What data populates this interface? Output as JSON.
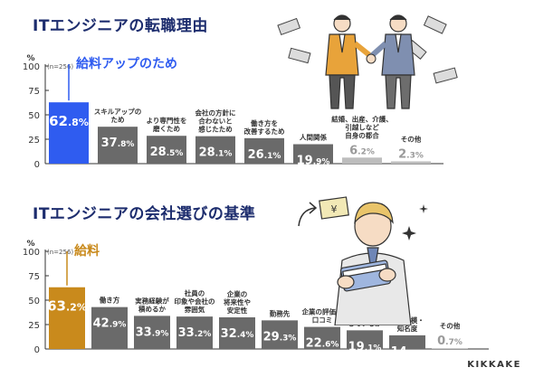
{
  "brand": "KIKKAKE",
  "colors": {
    "highlight1": "#2f5cf0",
    "highlight2": "#c98a1c",
    "bar": "#6a6a6a",
    "bar_light": "#bdbdbd",
    "title": "#1d2d6e"
  },
  "icons": [
    "handshake-illustration",
    "money-illustration",
    "yen-card-illustration",
    "sparkle-icon",
    "arrow-up-icon"
  ],
  "chart_data": [
    {
      "type": "bar",
      "title": "ITエンジニアの転職理由",
      "note": "(n=256)",
      "unit": "%",
      "ylim": [
        0,
        100
      ],
      "yticks": [
        0,
        25,
        50,
        75,
        100
      ],
      "highlight_label": "給料アップのため",
      "categories": [
        "給料アップのため",
        "スキルアップのため",
        "より専門性を磨くため",
        "会社の方針に合わないと感じたため",
        "働き方を改善するため",
        "人間関係",
        "結婚、出産、介護、引越しなど自身の都合",
        "その他"
      ],
      "labels": [
        [],
        [
          "スキルアップの",
          "ため"
        ],
        [
          "より専門性を",
          "磨くため"
        ],
        [
          "会社の方針に",
          "合わないと",
          "感じたため"
        ],
        [
          "働き方を",
          "改善するため"
        ],
        [
          "人間関係"
        ],
        [
          "結婚、出産、介護、",
          "引越しなど",
          "自身の都合"
        ],
        [
          "その他"
        ]
      ],
      "values": [
        62.8,
        37.8,
        28.5,
        28.1,
        26.1,
        19.9,
        6.2,
        2.3
      ],
      "value_labels": [
        "62.8%",
        "37.8%",
        "28.5%",
        "28.1%",
        "26.1%",
        "19.9%",
        "6.2%",
        "2.3%"
      ]
    },
    {
      "type": "bar",
      "title": "ITエンジニアの会社選びの基準",
      "note": "(n=256)",
      "unit": "%",
      "ylim": [
        0,
        100
      ],
      "yticks": [
        0,
        25,
        50,
        75,
        100
      ],
      "highlight_label": "給料",
      "categories": [
        "給料",
        "働き方",
        "実務経験が積めるか",
        "社員の印象や会社の雰囲気",
        "企業の将来性や安定性",
        "勤務先",
        "企業の評価・口コミ",
        "教育体制がしっかりしているか",
        "企業規模・知名度",
        "その他"
      ],
      "labels": [
        [],
        [
          "働き方"
        ],
        [
          "実務経験が",
          "積めるか"
        ],
        [
          "社員の",
          "印象や会社の",
          "雰囲気"
        ],
        [
          "企業の",
          "将来性や",
          "安定性"
        ],
        [
          "勤務先"
        ],
        [
          "企業の評価・",
          "口コミ"
        ],
        [
          "教育体制が",
          "しっかり",
          "しているか"
        ],
        [
          "企業規模・",
          "知名度"
        ],
        [
          "その他"
        ]
      ],
      "values": [
        63.2,
        42.9,
        33.9,
        33.2,
        32.4,
        29.3,
        22.6,
        19.1,
        14.0,
        0.7
      ],
      "value_labels": [
        "63.2%",
        "42.9%",
        "33.9%",
        "33.2%",
        "32.4%",
        "29.3%",
        "22.6%",
        "19.1%",
        "14.0%",
        "0.7%"
      ]
    }
  ]
}
